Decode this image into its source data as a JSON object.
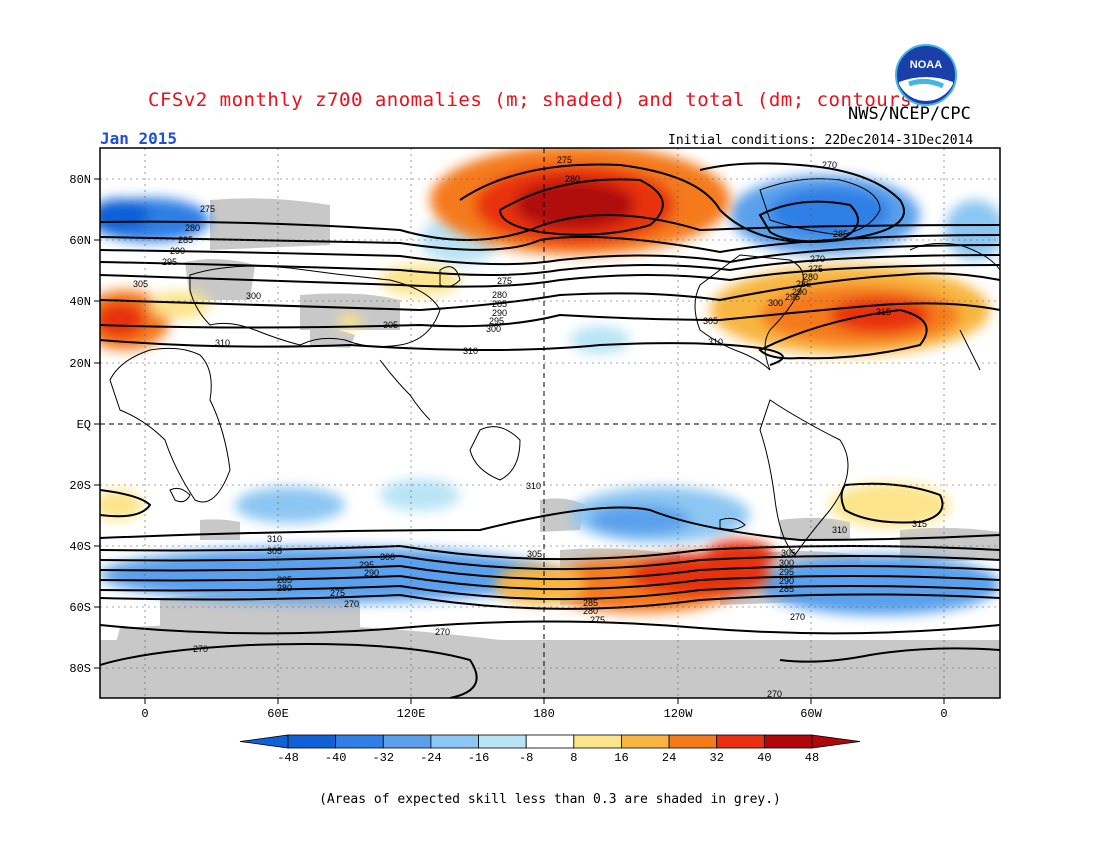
{
  "header": {
    "title": "CFSv2 monthly z700 anomalies (m; shaded) and total (dm; contours)",
    "agency": "NWS/NCEP/CPC",
    "month": "Jan 2015",
    "initial_conditions": "Initial conditions: 22Dec2014-31Dec2014"
  },
  "logo": {
    "icon": "noaa-logo-icon",
    "text": "NOAA"
  },
  "map": {
    "lat_labels": [
      "80N",
      "60N",
      "40N",
      "20N",
      "EQ",
      "20S",
      "40S",
      "60S",
      "80S"
    ],
    "lon_labels": [
      "0",
      "60E",
      "120E",
      "180",
      "120W",
      "60W",
      "0"
    ],
    "contour_labels": [
      "275",
      "280",
      "285",
      "290",
      "295",
      "300",
      "305",
      "310",
      "315",
      "270"
    ],
    "colors": {
      "neg48": "#1060d8",
      "neg40": "#2f7fe6",
      "neg32": "#5aa0ec",
      "neg24": "#8cc6f2",
      "neg16": "#b9e4f5",
      "zero": "#ffffff",
      "pos16": "#fbe48a",
      "pos24": "#f8b640",
      "pos32": "#f57a1c",
      "pos40": "#e83010",
      "pos48": "#b00808",
      "skill": "#c8c8c8"
    }
  },
  "colorbar": {
    "ticks": [
      "-48",
      "-40",
      "-32",
      "-24",
      "-16",
      "-8",
      "8",
      "16",
      "24",
      "32",
      "40",
      "48"
    ],
    "colors": [
      "#1060d8",
      "#2f7fe6",
      "#5aa0ec",
      "#8cc6f2",
      "#b9e4f5",
      "#ffffff",
      "#fbe48a",
      "#f8b640",
      "#f57a1c",
      "#e83010",
      "#b00808"
    ]
  },
  "footnote": "(Areas of expected skill less than 0.3 are shaded in grey.)"
}
